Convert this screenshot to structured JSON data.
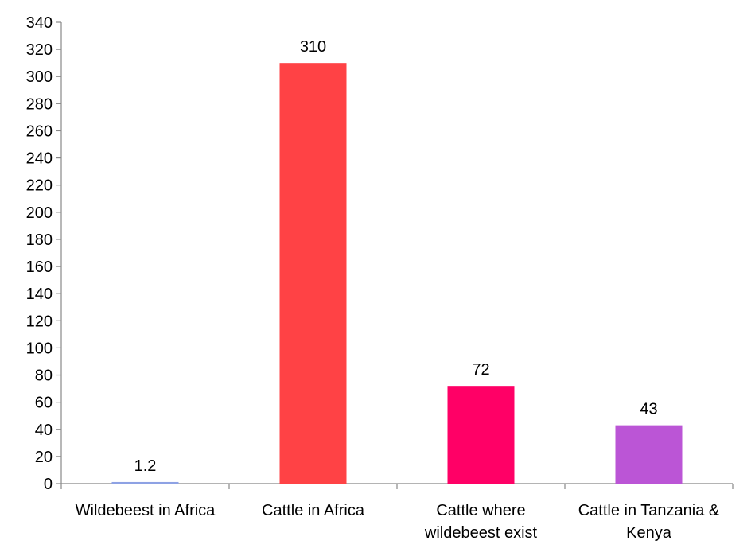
{
  "chart_data": {
    "type": "bar",
    "title": "",
    "xlabel": "",
    "ylabel": "",
    "categories": [
      [
        "Wildebeest in Africa"
      ],
      [
        "Cattle in Africa"
      ],
      [
        "Cattle where",
        "wildebeest exist"
      ],
      [
        "Cattle in Tanzania &",
        "Kenya"
      ]
    ],
    "values": [
      1.2,
      310,
      72,
      43
    ],
    "data_labels": [
      "1.2",
      "310",
      "72",
      "43"
    ],
    "colors": [
      "#8EA2E4",
      "#FF4245",
      "#FF0066",
      "#BB55D6"
    ],
    "ylim": [
      0,
      340
    ],
    "yticks": [
      0,
      20,
      40,
      60,
      80,
      100,
      120,
      140,
      160,
      180,
      200,
      220,
      240,
      260,
      280,
      300,
      320,
      340
    ],
    "grid": false,
    "legend": "none"
  }
}
